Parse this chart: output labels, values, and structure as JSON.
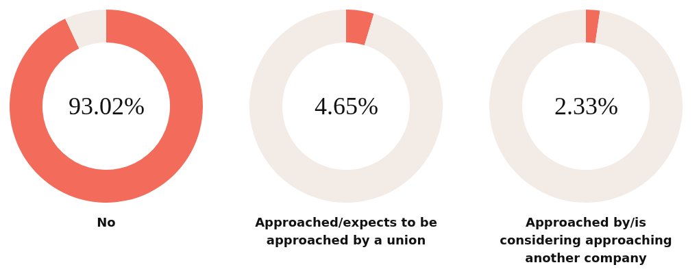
{
  "chart_data": [
    {
      "type": "donut",
      "title": "No",
      "categories": [
        null,
        null
      ],
      "values": [
        93.02,
        6.98
      ],
      "colors": [
        "#f26b5b",
        "#f2ebe6"
      ],
      "annotations": [
        "93.02%"
      ]
    },
    {
      "type": "donut",
      "title": "Approached/expects to be approached by a union",
      "categories": [
        null,
        null
      ],
      "values": [
        4.65,
        95.35
      ],
      "colors": [
        "#f26b5b",
        "#f2ebe6"
      ],
      "annotations": [
        "4.65%"
      ]
    },
    {
      "type": "donut",
      "title": "Approached by/is considering approaching another company",
      "categories": [
        null,
        null
      ],
      "values": [
        2.33,
        97.67
      ],
      "colors": [
        "#f26b5b",
        "#f2ebe6"
      ],
      "annotations": [
        "2.33%"
      ]
    }
  ]
}
